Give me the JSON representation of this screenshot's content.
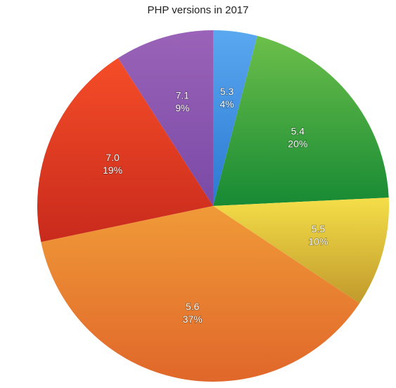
{
  "chart_data": {
    "type": "pie",
    "title": "PHP versions in 2017",
    "slices": [
      {
        "label": "5.3",
        "value": 4,
        "percent_label": "4%",
        "color_light": "#5aa8f0",
        "color_dark": "#2a78d2"
      },
      {
        "label": "5.4",
        "value": 20,
        "percent_label": "20%",
        "color_light": "#6cbf4a",
        "color_dark": "#178a34"
      },
      {
        "label": "5.5",
        "value": 10,
        "percent_label": "10%",
        "color_light": "#f4de48",
        "color_dark": "#c19a2c"
      },
      {
        "label": "5.6",
        "value": 37,
        "percent_label": "37%",
        "color_light": "#f09a38",
        "color_dark": "#e0672a"
      },
      {
        "label": "7.0",
        "value": 19,
        "percent_label": "19%",
        "color_light": "#f54d28",
        "color_dark": "#c82a1c"
      },
      {
        "label": "7.1",
        "value": 9,
        "percent_label": "9%",
        "color_light": "#9a63b8",
        "color_dark": "#7a4aa6"
      }
    ],
    "legend": "none"
  }
}
